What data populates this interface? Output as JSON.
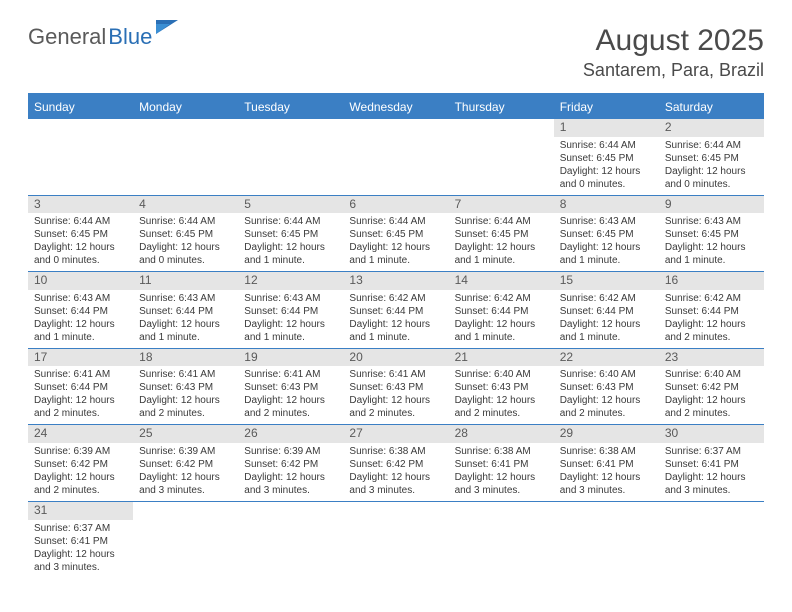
{
  "logo": {
    "part1": "General",
    "part2": "Blue"
  },
  "title": "August 2025",
  "location": "Santarem, Para, Brazil",
  "weekdays": [
    "Sunday",
    "Monday",
    "Tuesday",
    "Wednesday",
    "Thursday",
    "Friday",
    "Saturday"
  ],
  "colors": {
    "header_bar": "#3b7fc4",
    "day_header_bg": "#e5e5e5",
    "text": "#3a3a3a",
    "logo_gray": "#5a5a5a",
    "logo_blue": "#2a6fb5"
  },
  "typography": {
    "title_fontsize": 30,
    "location_fontsize": 18,
    "weekday_fontsize": 12,
    "daynum_fontsize": 12,
    "body_fontsize": 10
  },
  "weeks": [
    [
      null,
      null,
      null,
      null,
      null,
      {
        "n": "1",
        "sunrise": "Sunrise: 6:44 AM",
        "sunset": "Sunset: 6:45 PM",
        "daylight": "Daylight: 12 hours and 0 minutes."
      },
      {
        "n": "2",
        "sunrise": "Sunrise: 6:44 AM",
        "sunset": "Sunset: 6:45 PM",
        "daylight": "Daylight: 12 hours and 0 minutes."
      }
    ],
    [
      {
        "n": "3",
        "sunrise": "Sunrise: 6:44 AM",
        "sunset": "Sunset: 6:45 PM",
        "daylight": "Daylight: 12 hours and 0 minutes."
      },
      {
        "n": "4",
        "sunrise": "Sunrise: 6:44 AM",
        "sunset": "Sunset: 6:45 PM",
        "daylight": "Daylight: 12 hours and 0 minutes."
      },
      {
        "n": "5",
        "sunrise": "Sunrise: 6:44 AM",
        "sunset": "Sunset: 6:45 PM",
        "daylight": "Daylight: 12 hours and 1 minute."
      },
      {
        "n": "6",
        "sunrise": "Sunrise: 6:44 AM",
        "sunset": "Sunset: 6:45 PM",
        "daylight": "Daylight: 12 hours and 1 minute."
      },
      {
        "n": "7",
        "sunrise": "Sunrise: 6:44 AM",
        "sunset": "Sunset: 6:45 PM",
        "daylight": "Daylight: 12 hours and 1 minute."
      },
      {
        "n": "8",
        "sunrise": "Sunrise: 6:43 AM",
        "sunset": "Sunset: 6:45 PM",
        "daylight": "Daylight: 12 hours and 1 minute."
      },
      {
        "n": "9",
        "sunrise": "Sunrise: 6:43 AM",
        "sunset": "Sunset: 6:45 PM",
        "daylight": "Daylight: 12 hours and 1 minute."
      }
    ],
    [
      {
        "n": "10",
        "sunrise": "Sunrise: 6:43 AM",
        "sunset": "Sunset: 6:44 PM",
        "daylight": "Daylight: 12 hours and 1 minute."
      },
      {
        "n": "11",
        "sunrise": "Sunrise: 6:43 AM",
        "sunset": "Sunset: 6:44 PM",
        "daylight": "Daylight: 12 hours and 1 minute."
      },
      {
        "n": "12",
        "sunrise": "Sunrise: 6:43 AM",
        "sunset": "Sunset: 6:44 PM",
        "daylight": "Daylight: 12 hours and 1 minute."
      },
      {
        "n": "13",
        "sunrise": "Sunrise: 6:42 AM",
        "sunset": "Sunset: 6:44 PM",
        "daylight": "Daylight: 12 hours and 1 minute."
      },
      {
        "n": "14",
        "sunrise": "Sunrise: 6:42 AM",
        "sunset": "Sunset: 6:44 PM",
        "daylight": "Daylight: 12 hours and 1 minute."
      },
      {
        "n": "15",
        "sunrise": "Sunrise: 6:42 AM",
        "sunset": "Sunset: 6:44 PM",
        "daylight": "Daylight: 12 hours and 1 minute."
      },
      {
        "n": "16",
        "sunrise": "Sunrise: 6:42 AM",
        "sunset": "Sunset: 6:44 PM",
        "daylight": "Daylight: 12 hours and 2 minutes."
      }
    ],
    [
      {
        "n": "17",
        "sunrise": "Sunrise: 6:41 AM",
        "sunset": "Sunset: 6:44 PM",
        "daylight": "Daylight: 12 hours and 2 minutes."
      },
      {
        "n": "18",
        "sunrise": "Sunrise: 6:41 AM",
        "sunset": "Sunset: 6:43 PM",
        "daylight": "Daylight: 12 hours and 2 minutes."
      },
      {
        "n": "19",
        "sunrise": "Sunrise: 6:41 AM",
        "sunset": "Sunset: 6:43 PM",
        "daylight": "Daylight: 12 hours and 2 minutes."
      },
      {
        "n": "20",
        "sunrise": "Sunrise: 6:41 AM",
        "sunset": "Sunset: 6:43 PM",
        "daylight": "Daylight: 12 hours and 2 minutes."
      },
      {
        "n": "21",
        "sunrise": "Sunrise: 6:40 AM",
        "sunset": "Sunset: 6:43 PM",
        "daylight": "Daylight: 12 hours and 2 minutes."
      },
      {
        "n": "22",
        "sunrise": "Sunrise: 6:40 AM",
        "sunset": "Sunset: 6:43 PM",
        "daylight": "Daylight: 12 hours and 2 minutes."
      },
      {
        "n": "23",
        "sunrise": "Sunrise: 6:40 AM",
        "sunset": "Sunset: 6:42 PM",
        "daylight": "Daylight: 12 hours and 2 minutes."
      }
    ],
    [
      {
        "n": "24",
        "sunrise": "Sunrise: 6:39 AM",
        "sunset": "Sunset: 6:42 PM",
        "daylight": "Daylight: 12 hours and 2 minutes."
      },
      {
        "n": "25",
        "sunrise": "Sunrise: 6:39 AM",
        "sunset": "Sunset: 6:42 PM",
        "daylight": "Daylight: 12 hours and 3 minutes."
      },
      {
        "n": "26",
        "sunrise": "Sunrise: 6:39 AM",
        "sunset": "Sunset: 6:42 PM",
        "daylight": "Daylight: 12 hours and 3 minutes."
      },
      {
        "n": "27",
        "sunrise": "Sunrise: 6:38 AM",
        "sunset": "Sunset: 6:42 PM",
        "daylight": "Daylight: 12 hours and 3 minutes."
      },
      {
        "n": "28",
        "sunrise": "Sunrise: 6:38 AM",
        "sunset": "Sunset: 6:41 PM",
        "daylight": "Daylight: 12 hours and 3 minutes."
      },
      {
        "n": "29",
        "sunrise": "Sunrise: 6:38 AM",
        "sunset": "Sunset: 6:41 PM",
        "daylight": "Daylight: 12 hours and 3 minutes."
      },
      {
        "n": "30",
        "sunrise": "Sunrise: 6:37 AM",
        "sunset": "Sunset: 6:41 PM",
        "daylight": "Daylight: 12 hours and 3 minutes."
      }
    ],
    [
      {
        "n": "31",
        "sunrise": "Sunrise: 6:37 AM",
        "sunset": "Sunset: 6:41 PM",
        "daylight": "Daylight: 12 hours and 3 minutes."
      },
      null,
      null,
      null,
      null,
      null,
      null
    ]
  ]
}
